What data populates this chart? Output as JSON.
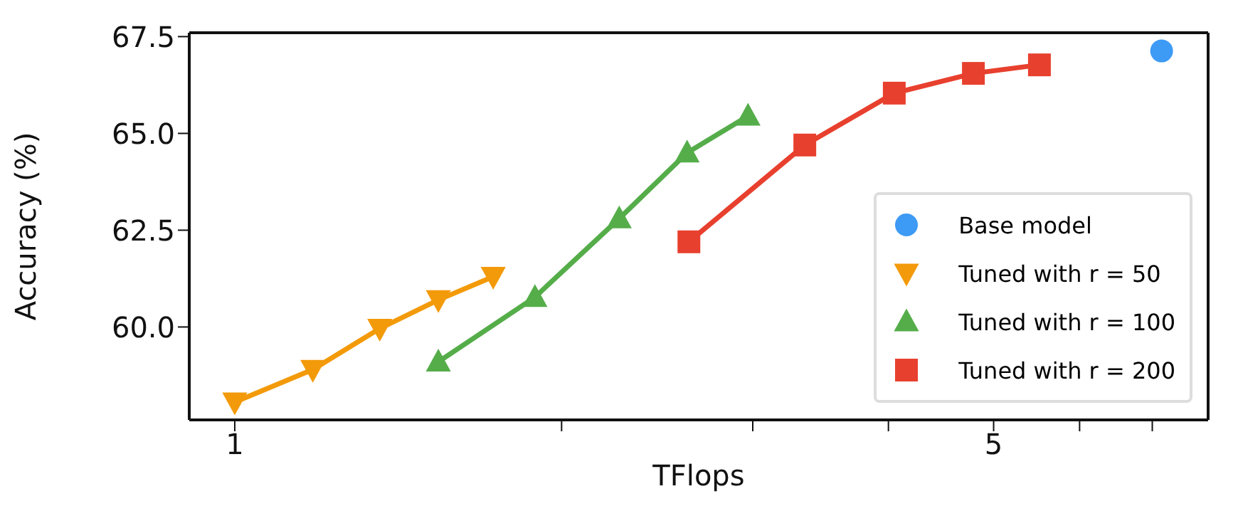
{
  "chart_data": {
    "type": "line",
    "xlabel": "TFlops",
    "ylabel": "Accuracy (%)",
    "log": "x",
    "xlim": [
      0.908,
      7.88
    ],
    "xticks": [
      1,
      {
        "value": 2,
        "label": null
      },
      {
        "value": 3,
        "label": null
      },
      {
        "value": 4,
        "label": null
      },
      5,
      {
        "value": 6,
        "label": null
      },
      {
        "value": 7,
        "label": null
      }
    ],
    "ylim": [
      57.6,
      67.6
    ],
    "yticks": [
      {
        "value": 60,
        "label": "60.0"
      },
      62.5,
      {
        "value": 65,
        "label": "65.0"
      },
      67.5
    ],
    "grid": false,
    "legend": "bottom right",
    "line_style": "solid",
    "series": [
      {
        "name": "Base model",
        "type": "scatter",
        "marker": "circle",
        "color": "#3d9af5",
        "x": [
          7.14
        ],
        "values": [
          67.13
        ]
      },
      {
        "name": "Tuned with r = 50",
        "marker": "triangle-down",
        "color": "#f39a0a",
        "x": [
          1,
          1.18,
          1.36,
          1.54,
          1.73
        ],
        "values": [
          58.06,
          58.9,
          59.96,
          60.7,
          61.3
        ]
      },
      {
        "name": "Tuned with r = 100",
        "marker": "triangle",
        "color": "#55ad4a",
        "x": [
          1.54,
          1.89,
          2.26,
          2.61,
          2.97
        ],
        "values": [
          59.1,
          60.77,
          62.8,
          64.5,
          65.45
        ]
      },
      {
        "name": "Tuned with r = 200",
        "marker": "square",
        "color": "#e8402e",
        "x": [
          2.62,
          3.35,
          4.05,
          4.79,
          5.51
        ],
        "values": [
          62.2,
          64.7,
          66.04,
          66.55,
          66.77
        ]
      }
    ]
  }
}
